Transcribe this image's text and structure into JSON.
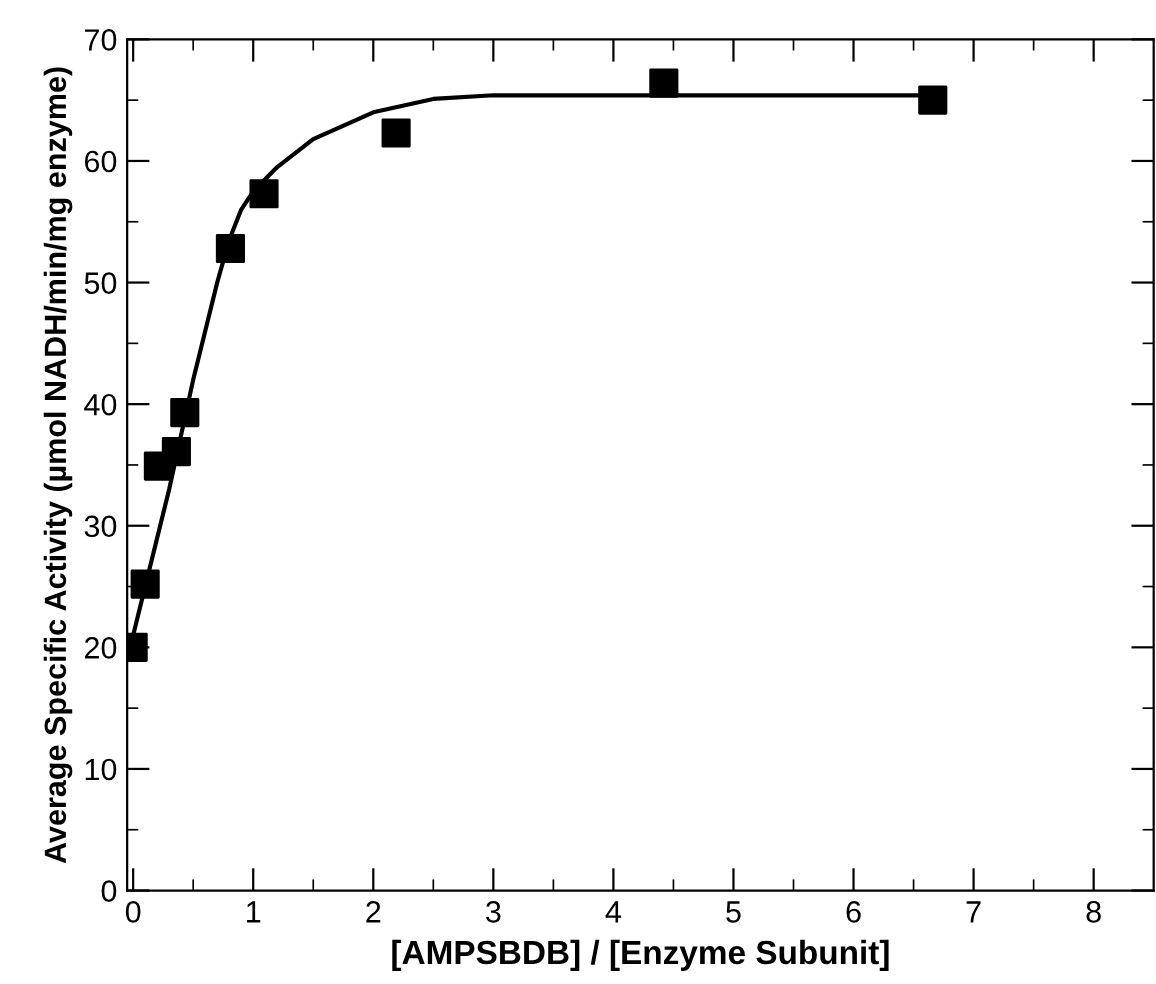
{
  "chart_data": {
    "type": "scatter",
    "xlabel": "[AMPSBDB] / [Enzyme Subunit]",
    "ylabel": "Average Specific Activity (µmol NADH/min/mg enzyme)",
    "xlim": [
      -0.05,
      8.5
    ],
    "ylim": [
      0,
      70
    ],
    "xticks": [
      0,
      {
        "value": 0.5,
        "label": null
      },
      1,
      {
        "value": 1.5,
        "label": null
      },
      2,
      {
        "value": 2.5,
        "label": null
      },
      3,
      {
        "value": 3.5,
        "label": null
      },
      4,
      {
        "value": 4.5,
        "label": null
      },
      5,
      {
        "value": 5.5,
        "label": null
      },
      6,
      {
        "value": 6.5,
        "label": null
      },
      7,
      {
        "value": 7.5,
        "label": null
      },
      8
    ],
    "yticks": [
      0,
      {
        "value": 5,
        "label": null
      },
      10,
      {
        "value": 15,
        "label": null
      },
      20,
      {
        "value": 25,
        "label": null
      },
      30,
      {
        "value": 35,
        "label": null
      },
      40,
      {
        "value": 45,
        "label": null
      },
      50,
      {
        "value": 55,
        "label": null
      },
      60,
      {
        "value": 65,
        "label": null
      },
      70
    ],
    "grid": false,
    "legend": false,
    "series": [
      {
        "type": "line",
        "color": "#000000",
        "marker": "none",
        "line_style": "solid",
        "x": [
          0,
          0.1,
          0.3,
          0.5,
          0.7,
          0.8,
          0.9,
          1.0,
          1.2,
          1.5,
          2.0,
          2.5,
          3.0,
          4.0,
          6.6
        ],
        "values": [
          21,
          25,
          33,
          42,
          50,
          53.5,
          56,
          57.5,
          59.5,
          61.8,
          64,
          65.1,
          65.4,
          65.4,
          65.4
        ]
      },
      {
        "color": "#000000",
        "marker": "square",
        "x": [
          0,
          0.1,
          0.21,
          0.36,
          0.43,
          0.81,
          1.09,
          2.19,
          4.42,
          6.66
        ],
        "values": [
          20.0,
          25.2,
          34.9,
          36.1,
          39.3,
          52.8,
          57.3,
          62.3,
          66.4,
          65.0
        ]
      }
    ]
  }
}
